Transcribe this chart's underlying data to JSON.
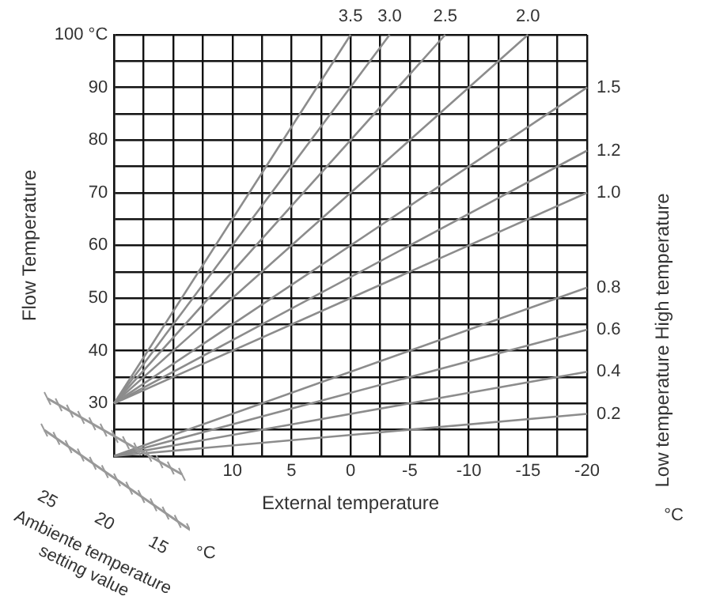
{
  "chart_data": {
    "type": "line",
    "xlabel": "External temperature",
    "ylabel": "Flow Temperature",
    "y2label": "Low temperature High temperature",
    "xlim": [
      20,
      -20
    ],
    "xticks": [
      {
        "value": 20,
        "label": null
      },
      {
        "value": 17.5,
        "label": null
      },
      {
        "value": 15,
        "label": null
      },
      {
        "value": 12.5,
        "label": null
      },
      10,
      {
        "value": 7.5,
        "label": null
      },
      5,
      {
        "value": 2.5,
        "label": null
      },
      0,
      {
        "value": -2.5,
        "label": null
      },
      -5,
      {
        "value": -7.5,
        "label": null
      },
      -10,
      {
        "value": -12.5,
        "label": null
      },
      -15,
      {
        "value": -17.5,
        "label": null
      },
      -20
    ],
    "ylim": [
      20,
      100
    ],
    "yticks": [
      {
        "value": 20,
        "label": null
      },
      {
        "value": 25,
        "label": null
      },
      30,
      {
        "value": 35,
        "label": null
      },
      40,
      {
        "value": 45,
        "label": null
      },
      50,
      {
        "value": 55,
        "label": null
      },
      60,
      {
        "value": 65,
        "label": null
      },
      70,
      {
        "value": 75,
        "label": null
      },
      80,
      {
        "value": 85,
        "label": null
      },
      90,
      {
        "value": 95,
        "label": null
      },
      {
        "value": 100,
        "label": "100 °C"
      }
    ],
    "grid": true,
    "legend": false,
    "marker": "none",
    "line_style": "solid",
    "series": [
      {
        "name": "3.5",
        "color": "#8c8c8c",
        "x": [
          20,
          0
        ],
        "values": [
          30,
          100
        ]
      },
      {
        "name": "3.0",
        "color": "#8c8c8c",
        "x": [
          20,
          -3.3
        ],
        "values": [
          30,
          100
        ]
      },
      {
        "name": "2.5",
        "color": "#8c8c8c",
        "x": [
          20,
          -8
        ],
        "values": [
          30,
          100
        ]
      },
      {
        "name": "2.0",
        "color": "#8c8c8c",
        "x": [
          20,
          -15
        ],
        "values": [
          30,
          100
        ]
      },
      {
        "name": "1.5",
        "color": "#8c8c8c",
        "x": [
          20,
          -20
        ],
        "values": [
          30,
          90
        ]
      },
      {
        "name": "1.2",
        "color": "#8c8c8c",
        "x": [
          20,
          -20
        ],
        "values": [
          30,
          78
        ]
      },
      {
        "name": "1.0",
        "color": "#8c8c8c",
        "x": [
          20,
          -20
        ],
        "values": [
          30,
          70
        ]
      },
      {
        "name": "0.8",
        "color": "#8c8c8c",
        "x": [
          20,
          -20
        ],
        "values": [
          20,
          52
        ]
      },
      {
        "name": "0.6",
        "color": "#8c8c8c",
        "x": [
          20,
          -20
        ],
        "values": [
          20,
          44
        ]
      },
      {
        "name": "0.4",
        "color": "#8c8c8c",
        "x": [
          20,
          -20
        ],
        "values": [
          20,
          36
        ]
      },
      {
        "name": "0.2",
        "color": "#8c8c8c",
        "x": [
          20,
          -20
        ],
        "values": [
          20,
          28
        ]
      }
    ],
    "annotations": [
      "°C",
      "25",
      "20",
      "15",
      "°C",
      "Ambiente temperature setting value"
    ]
  }
}
